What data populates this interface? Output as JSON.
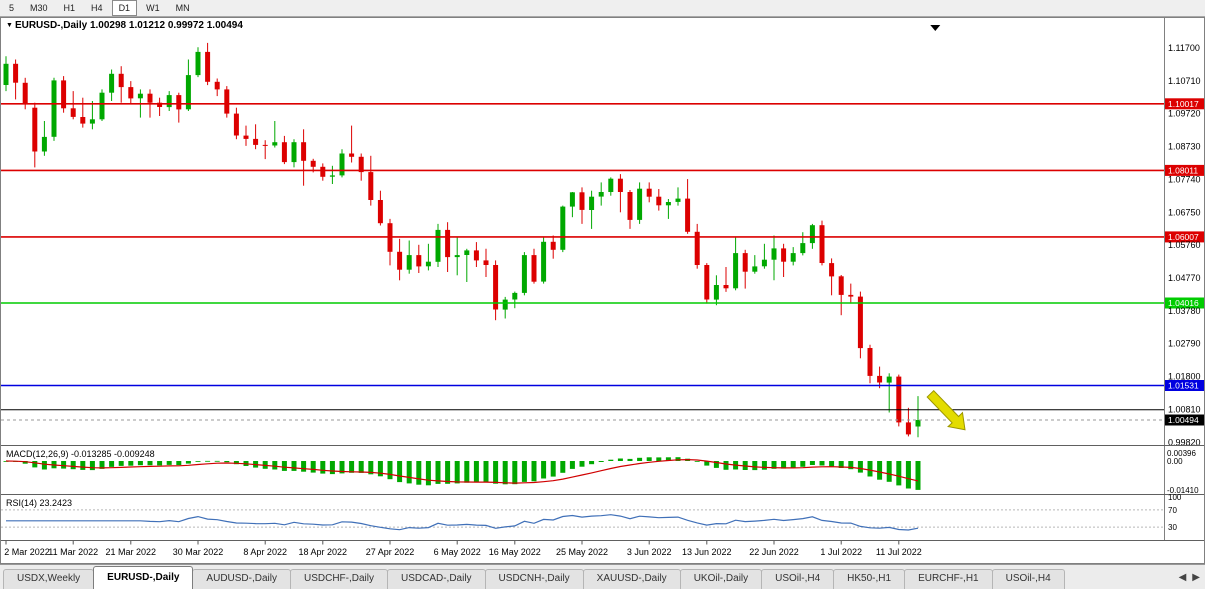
{
  "toolbar": {
    "periods": [
      {
        "label": "5",
        "active": false
      },
      {
        "label": "M30",
        "active": false
      },
      {
        "label": "H1",
        "active": false
      },
      {
        "label": "H4",
        "active": false
      },
      {
        "label": "D1",
        "active": true
      },
      {
        "label": "W1",
        "active": false
      },
      {
        "label": "MN",
        "active": false
      }
    ]
  },
  "chart": {
    "title_symbol": "EURUSD-,Daily",
    "title_ohlc": "1.00298 1.01212 0.99972 1.00494",
    "marker_icon": "▼"
  },
  "colors": {
    "bull": "#00A800",
    "bear": "#DC0000",
    "macd_hist": "#00A800",
    "macd_signal": "#D00000",
    "rsi_line": "#4070B8",
    "arrow": "#E3DC00",
    "arrow_edge": "#9C9600",
    "axis_text": "#000000"
  },
  "chart_data": {
    "type": "candlestick",
    "symbol": "EURUSD",
    "timeframe": "Daily",
    "price_range": {
      "top": 1.1239,
      "bottom": 0.9977
    },
    "price_axis": [
      "1.11700",
      "1.10710",
      "1.09720",
      "1.08730",
      "1.07740",
      "1.06750",
      "1.05760",
      "1.04770",
      "1.03780",
      "1.02790",
      "1.01800",
      "1.00810",
      "0.99820"
    ],
    "date_labels": [
      {
        "label": "2 Mar 2022",
        "i": 0
      },
      {
        "label": "11 Mar 2022",
        "i": 7
      },
      {
        "label": "21 Mar 2022",
        "i": 13
      },
      {
        "label": "30 Mar 2022",
        "i": 20
      },
      {
        "label": "8 Apr 2022",
        "i": 27
      },
      {
        "label": "18 Apr 2022",
        "i": 33
      },
      {
        "label": "27 Apr 2022",
        "i": 40
      },
      {
        "label": "6 May 2022",
        "i": 47
      },
      {
        "label": "16 May 2022",
        "i": 53
      },
      {
        "label": "25 May 2022",
        "i": 60
      },
      {
        "label": "3 Jun 2022",
        "i": 67
      },
      {
        "label": "13 Jun 2022",
        "i": 73
      },
      {
        "label": "22 Jun 2022",
        "i": 80
      },
      {
        "label": "1 Jul 2022",
        "i": 87
      },
      {
        "label": "11 Jul 2022",
        "i": 93
      }
    ],
    "hlines": [
      {
        "price": 1.10017,
        "label": "1.10017",
        "color": "#DC0000",
        "width": 1.6
      },
      {
        "price": 1.08011,
        "label": "1.08011",
        "color": "#DC0000",
        "width": 1.6
      },
      {
        "price": 1.06007,
        "label": "1.06007",
        "color": "#DC0000",
        "width": 1.6
      },
      {
        "price": 1.04016,
        "label": "1.04016",
        "color": "#00CC00",
        "width": 1.6
      },
      {
        "price": 1.01531,
        "label": "1.01531",
        "color": "#0000E0",
        "width": 1.6
      },
      {
        "price": 1.008,
        "label": null,
        "color": "#000000",
        "width": 1
      }
    ],
    "current_price": {
      "value": 1.00494,
      "label": "1.00494",
      "color": "#000000"
    },
    "top_marker": {
      "i": 96.8
    },
    "arrow": {
      "from_i": 96.3,
      "from_price": 1.0128,
      "to_i": 99.9,
      "to_price": 1.002
    },
    "candles": [
      [
        1.1058,
        1.1145,
        1.104,
        1.1122
      ],
      [
        1.1122,
        1.1135,
        1.1015,
        1.1065
      ],
      [
        1.1065,
        1.108,
        1.0985,
        1.1002
      ],
      [
        1.099,
        1.1005,
        1.081,
        1.0858
      ],
      [
        1.0858,
        1.095,
        1.0845,
        1.0902
      ],
      [
        1.0902,
        1.108,
        1.089,
        1.1072
      ],
      [
        1.1072,
        1.1085,
        1.0975,
        1.0988
      ],
      [
        1.0988,
        1.104,
        1.0955,
        1.0962
      ],
      [
        1.0962,
        1.102,
        1.093,
        1.0942
      ],
      [
        1.0942,
        1.101,
        1.0925,
        1.0955
      ],
      [
        1.0955,
        1.1045,
        1.095,
        1.1035
      ],
      [
        1.1035,
        1.1105,
        1.101,
        1.1092
      ],
      [
        1.1092,
        1.1115,
        1.1005,
        1.1052
      ],
      [
        1.1052,
        1.107,
        1.1,
        1.1018
      ],
      [
        1.1018,
        1.1045,
        1.096,
        1.1032
      ],
      [
        1.1032,
        1.1045,
        1.096,
        1.1005
      ],
      [
        1.1005,
        1.102,
        1.0965,
        1.0992
      ],
      [
        1.0992,
        1.104,
        1.098,
        1.1028
      ],
      [
        1.1028,
        1.1035,
        1.0945,
        1.0985
      ],
      [
        1.0985,
        1.1135,
        1.098,
        1.1088
      ],
      [
        1.1088,
        1.1172,
        1.1082,
        1.1158
      ],
      [
        1.1158,
        1.1185,
        1.1058,
        1.1068
      ],
      [
        1.1068,
        1.1078,
        1.1025,
        1.1045
      ],
      [
        1.1045,
        1.1055,
        1.096,
        1.0972
      ],
      [
        1.0972,
        1.099,
        1.0895,
        1.0906
      ],
      [
        1.0906,
        1.0936,
        1.0875,
        1.0896
      ],
      [
        1.0896,
        1.094,
        1.0865,
        1.0878
      ],
      [
        1.0878,
        1.0892,
        1.0835,
        1.0876
      ],
      [
        1.0876,
        1.095,
        1.087,
        1.0886
      ],
      [
        1.0886,
        1.0905,
        1.082,
        1.0826
      ],
      [
        1.0826,
        1.0895,
        1.081,
        1.0886
      ],
      [
        1.0886,
        1.0925,
        1.0755,
        1.083
      ],
      [
        1.083,
        1.0836,
        1.0795,
        1.0812
      ],
      [
        1.0812,
        1.0822,
        1.077,
        1.0782
      ],
      [
        1.0782,
        1.0815,
        1.076,
        1.0786
      ],
      [
        1.0786,
        1.0865,
        1.078,
        1.0852
      ],
      [
        1.0852,
        1.0936,
        1.0825,
        1.0842
      ],
      [
        1.0842,
        1.0852,
        1.077,
        1.0796
      ],
      [
        1.0796,
        1.0845,
        1.0695,
        1.0712
      ],
      [
        1.0712,
        1.074,
        1.0635,
        1.0642
      ],
      [
        1.0642,
        1.0655,
        1.0515,
        1.0556
      ],
      [
        1.0556,
        1.0595,
        1.047,
        1.0502
      ],
      [
        1.0502,
        1.059,
        1.049,
        1.0546
      ],
      [
        1.0546,
        1.0577,
        1.0492,
        1.0512
      ],
      [
        1.0512,
        1.058,
        1.05,
        1.0526
      ],
      [
        1.0526,
        1.064,
        1.051,
        1.0622
      ],
      [
        1.0622,
        1.0645,
        1.0495,
        1.054
      ],
      [
        1.054,
        1.06,
        1.0485,
        1.0546
      ],
      [
        1.0546,
        1.0565,
        1.0465,
        1.056
      ],
      [
        1.056,
        1.0585,
        1.051,
        1.053
      ],
      [
        1.053,
        1.0565,
        1.048,
        1.0516
      ],
      [
        1.0516,
        1.053,
        1.035,
        1.0382
      ],
      [
        1.0382,
        1.042,
        1.0355,
        1.0412
      ],
      [
        1.0412,
        1.0436,
        1.0386,
        1.0432
      ],
      [
        1.0432,
        1.0555,
        1.0425,
        1.0546
      ],
      [
        1.0546,
        1.0565,
        1.046,
        1.0466
      ],
      [
        1.0466,
        1.06,
        1.046,
        1.0586
      ],
      [
        1.0586,
        1.0605,
        1.0535,
        1.0562
      ],
      [
        1.0562,
        1.0695,
        1.0555,
        1.0692
      ],
      [
        1.0692,
        1.0736,
        1.066,
        1.0735
      ],
      [
        1.0735,
        1.075,
        1.064,
        1.0682
      ],
      [
        1.0682,
        1.074,
        1.0625,
        1.0722
      ],
      [
        1.0722,
        1.0765,
        1.0695,
        1.0736
      ],
      [
        1.0736,
        1.078,
        1.0725,
        1.0776
      ],
      [
        1.0776,
        1.079,
        1.0675,
        1.0736
      ],
      [
        1.0736,
        1.0742,
        1.0625,
        1.0652
      ],
      [
        1.0652,
        1.0765,
        1.064,
        1.0746
      ],
      [
        1.0746,
        1.0765,
        1.0705,
        1.0722
      ],
      [
        1.0722,
        1.0745,
        1.068,
        1.0696
      ],
      [
        1.0696,
        1.0715,
        1.0655,
        1.0706
      ],
      [
        1.0706,
        1.075,
        1.0695,
        1.0716
      ],
      [
        1.0716,
        1.0775,
        1.061,
        1.0616
      ],
      [
        1.0616,
        1.064,
        1.0505,
        1.0516
      ],
      [
        1.0516,
        1.0522,
        1.04,
        1.0412
      ],
      [
        1.0412,
        1.0485,
        1.0395,
        1.0456
      ],
      [
        1.0456,
        1.051,
        1.0435,
        1.0446
      ],
      [
        1.0446,
        1.06,
        1.044,
        1.0552
      ],
      [
        1.0552,
        1.0562,
        1.0445,
        1.0496
      ],
      [
        1.0496,
        1.0546,
        1.049,
        1.0512
      ],
      [
        1.0512,
        1.058,
        1.0505,
        1.0532
      ],
      [
        1.0532,
        1.0605,
        1.047,
        1.0566
      ],
      [
        1.0566,
        1.058,
        1.048,
        1.0526
      ],
      [
        1.0526,
        1.057,
        1.0515,
        1.0552
      ],
      [
        1.0552,
        1.0615,
        1.0545,
        1.0582
      ],
      [
        1.0582,
        1.064,
        1.0565,
        1.0636
      ],
      [
        1.0636,
        1.065,
        1.0515,
        1.0522
      ],
      [
        1.0522,
        1.0536,
        1.0425,
        1.0482
      ],
      [
        1.0482,
        1.0486,
        1.0365,
        1.0426
      ],
      [
        1.0426,
        1.046,
        1.04,
        1.0421
      ],
      [
        1.0421,
        1.0436,
        1.0235,
        1.0266
      ],
      [
        1.0266,
        1.0276,
        1.016,
        1.0182
      ],
      [
        1.0182,
        1.021,
        1.0145,
        1.0162
      ],
      [
        1.0162,
        1.019,
        1.0072,
        1.018
      ],
      [
        1.018,
        1.0186,
        1.003,
        1.0042
      ],
      [
        1.0042,
        1.0086,
        1.0,
        1.0006
      ],
      [
        1.00298,
        1.01212,
        0.99972,
        1.00494
      ]
    ]
  },
  "macd": {
    "label": "MACD(12,26,9) -0.013285 -0.009248",
    "params": [
      12,
      26,
      9
    ],
    "values_display": [
      "-0.013285",
      "-0.009248"
    ],
    "axis": [
      {
        "label": "0.00396",
        "v": 0.00396
      },
      {
        "label": "0.00",
        "v": 0
      },
      {
        "label": "-0.01410",
        "v": -0.0141
      }
    ]
  },
  "rsi": {
    "label": "RSI(14) 23.2423",
    "period": 14,
    "value_display": "23.2423",
    "levels": [
      70,
      30
    ],
    "axis": [
      {
        "label": "100",
        "v": 100
      },
      {
        "label": "70",
        "v": 70
      },
      {
        "label": "30",
        "v": 30
      }
    ]
  },
  "tabs": {
    "scroll_left": "◀",
    "scroll_right": "▶",
    "items": [
      {
        "label": "USDX,Weekly",
        "active": false
      },
      {
        "label": "EURUSD-,Daily",
        "active": true
      },
      {
        "label": "AUDUSD-,Daily",
        "active": false
      },
      {
        "label": "USDCHF-,Daily",
        "active": false
      },
      {
        "label": "USDCAD-,Daily",
        "active": false
      },
      {
        "label": "USDCNH-,Daily",
        "active": false
      },
      {
        "label": "XAUUSD-,Daily",
        "active": false
      },
      {
        "label": "UKOil-,Daily",
        "active": false
      },
      {
        "label": "USOil-,H4",
        "active": false
      },
      {
        "label": "HK50-,H1",
        "active": false
      },
      {
        "label": "EURCHF-,H1",
        "active": false
      },
      {
        "label": "USOil-,H4",
        "active": false
      }
    ]
  }
}
